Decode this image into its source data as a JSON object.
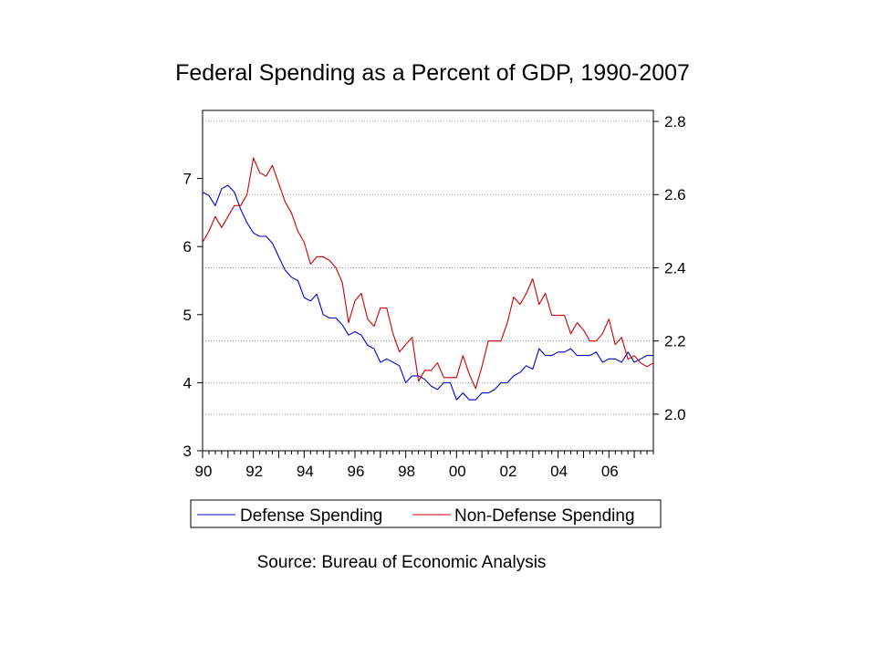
{
  "chart_data": {
    "type": "line",
    "title": "Federal Spending as a Percent of GDP, 1990-2007",
    "source": "Source: Bureau of Economic Analysis",
    "x_tick_labels": [
      "90",
      "92",
      "94",
      "96",
      "98",
      "00",
      "02",
      "04",
      "06"
    ],
    "x_range": [
      1990.0,
      2007.75
    ],
    "left_axis": {
      "range": [
        3,
        8
      ],
      "tick_labels": [
        "3",
        "4",
        "5",
        "6",
        "7"
      ]
    },
    "right_axis": {
      "range": [
        1.9,
        2.83
      ],
      "tick_labels": [
        "2.0",
        "2.2",
        "2.4",
        "2.6",
        "2.8"
      ]
    },
    "grid": true,
    "legend_position": "bottom",
    "series": [
      {
        "name": "Defense Spending",
        "axis": "left",
        "color": "#0000cc",
        "values": [
          6.8,
          6.75,
          6.6,
          6.85,
          6.9,
          6.8,
          6.55,
          6.35,
          6.2,
          6.15,
          6.15,
          6.05,
          5.85,
          5.65,
          5.55,
          5.5,
          5.25,
          5.2,
          5.3,
          5.0,
          4.95,
          4.95,
          4.85,
          4.7,
          4.75,
          4.7,
          4.55,
          4.5,
          4.3,
          4.35,
          4.3,
          4.25,
          4.0,
          4.1,
          4.1,
          4.05,
          3.95,
          3.9,
          4.0,
          4.0,
          3.75,
          3.85,
          3.75,
          3.75,
          3.85,
          3.85,
          3.9,
          4.0,
          4.0,
          4.1,
          4.15,
          4.25,
          4.2,
          4.5,
          4.4,
          4.4,
          4.45,
          4.45,
          4.5,
          4.4,
          4.4,
          4.4,
          4.45,
          4.3,
          4.35,
          4.35,
          4.3,
          4.45,
          4.3,
          4.35,
          4.4,
          4.4
        ]
      },
      {
        "name": "Non-Defense Spending",
        "axis": "right",
        "color": "#cc0000",
        "values": [
          2.47,
          2.5,
          2.54,
          2.51,
          2.54,
          2.57,
          2.57,
          2.6,
          2.7,
          2.66,
          2.65,
          2.68,
          2.63,
          2.58,
          2.55,
          2.5,
          2.47,
          2.41,
          2.43,
          2.43,
          2.42,
          2.4,
          2.36,
          2.25,
          2.31,
          2.33,
          2.26,
          2.24,
          2.29,
          2.29,
          2.22,
          2.17,
          2.19,
          2.21,
          2.09,
          2.12,
          2.12,
          2.14,
          2.1,
          2.1,
          2.1,
          2.16,
          2.11,
          2.07,
          2.13,
          2.2,
          2.2,
          2.2,
          2.25,
          2.32,
          2.3,
          2.33,
          2.37,
          2.3,
          2.33,
          2.27,
          2.27,
          2.27,
          2.22,
          2.25,
          2.23,
          2.2,
          2.2,
          2.22,
          2.26,
          2.19,
          2.21,
          2.15,
          2.16,
          2.14,
          2.13,
          2.14
        ]
      }
    ]
  }
}
